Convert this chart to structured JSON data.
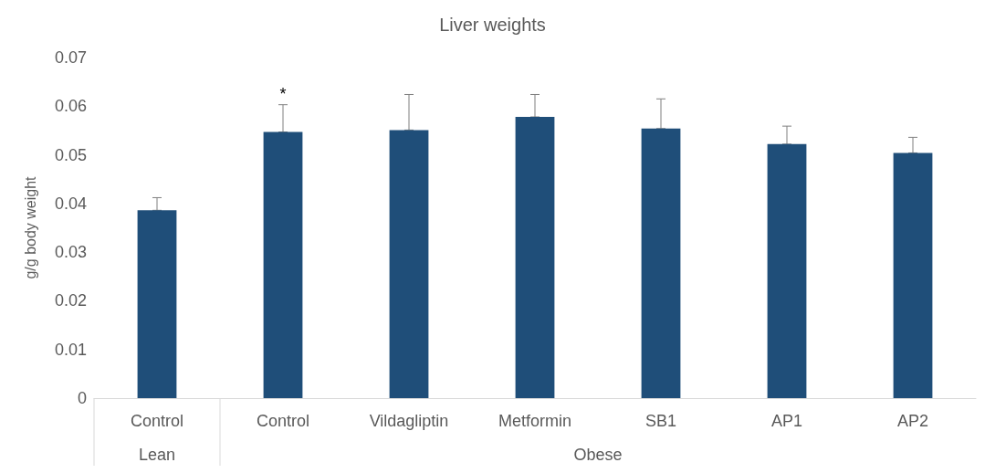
{
  "chart_data": {
    "type": "bar",
    "title": "Liver weights",
    "ylabel": "g/g body weight",
    "categories": [
      "Control",
      "Control",
      "Vildagliptin",
      "Metformin",
      "SB1",
      "AP1",
      "AP2"
    ],
    "values": [
      0.0386,
      0.0547,
      0.0551,
      0.0578,
      0.0554,
      0.0522,
      0.0504
    ],
    "errors": [
      [
        0.0386,
        0.0412
      ],
      [
        0.0547,
        0.0603
      ],
      [
        0.0551,
        0.0624
      ],
      [
        0.0578,
        0.0624
      ],
      [
        0.0554,
        0.0615
      ],
      [
        0.0522,
        0.0559
      ],
      [
        0.0504,
        0.0536
      ]
    ],
    "value_labels": [
      null,
      "*",
      null,
      null,
      null,
      null,
      null
    ],
    "color": "#1f4e79",
    "ylim": [
      0,
      0.07
    ],
    "yticks": [
      0,
      0.01,
      0.02,
      0.03,
      0.04,
      0.05,
      0.06,
      0.07
    ],
    "grid": false,
    "annotations": [
      "Lean",
      "Obese"
    ]
  }
}
